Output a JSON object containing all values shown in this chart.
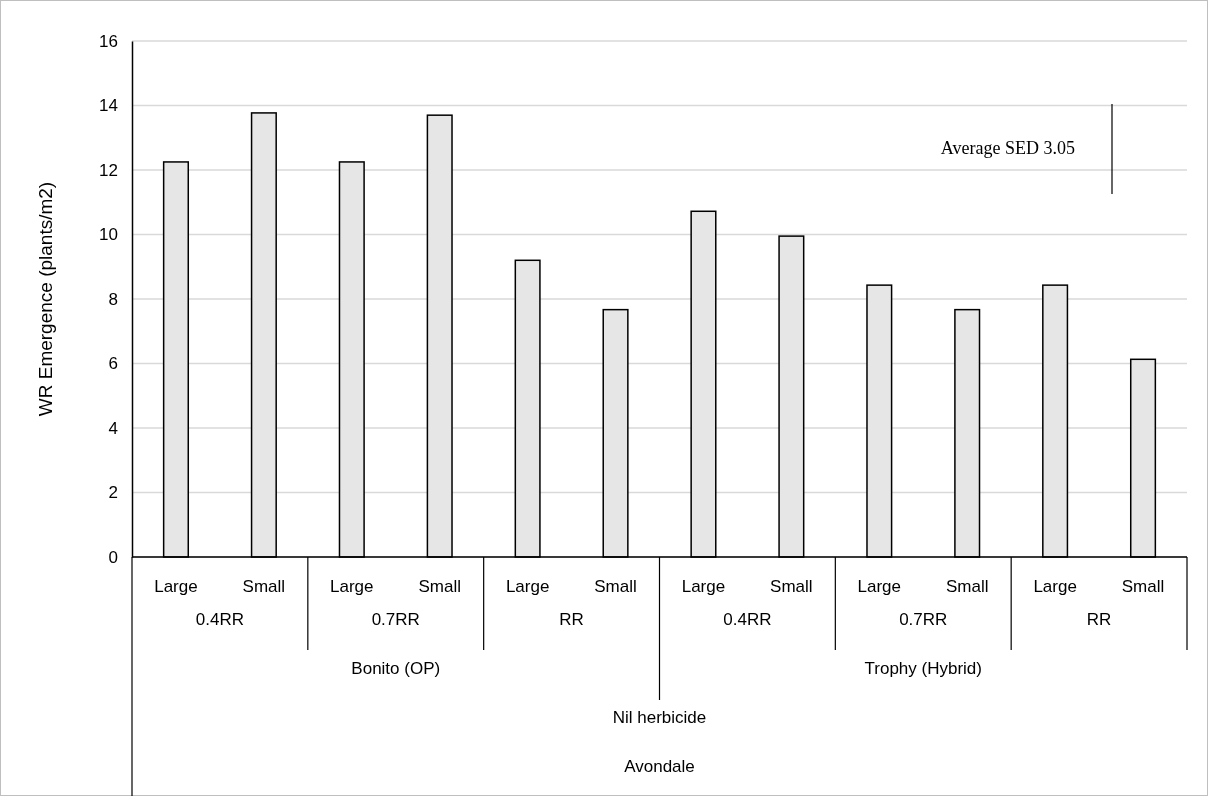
{
  "chart_data": {
    "type": "bar",
    "ylabel": "WR Emergence (plants/m2)",
    "categories": [
      "Large",
      "Small",
      "Large",
      "Small",
      "Large",
      "Small",
      "Large",
      "Small",
      "Large",
      "Small",
      "Large",
      "Small"
    ],
    "values": [
      12.25,
      13.77,
      12.25,
      13.7,
      9.2,
      7.67,
      10.72,
      9.95,
      8.43,
      7.67,
      8.43,
      6.13
    ],
    "color": "#e6e6e6",
    "ylim": [
      0,
      16
    ],
    "yticks": [
      0,
      2,
      4,
      6,
      8,
      10,
      12,
      14,
      16
    ],
    "grid": "y",
    "annotations": [
      "0.4RR",
      "0.7RR",
      "RR",
      "0.4RR",
      "0.7RR",
      "RR",
      "Bonito (OP)",
      "Trophy (Hybrid)",
      "Nil herbicide",
      "Avondale",
      "Average SED 3.05"
    ]
  }
}
